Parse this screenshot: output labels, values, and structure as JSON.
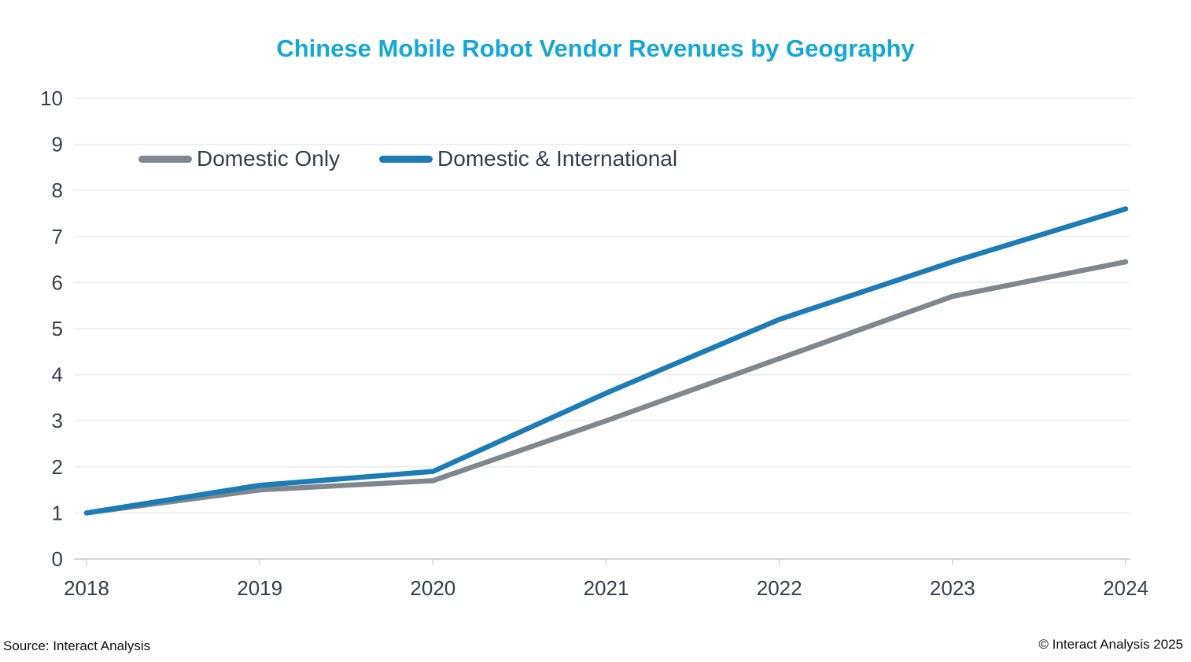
{
  "title": "Chinese Mobile Robot Vendor Revenues by Geography",
  "footer": {
    "source": "Source: Interact Analysis",
    "copyright": "© Interact Analysis 2025"
  },
  "colors": {
    "title": "#15a8d6",
    "gridline": "#ebebeb",
    "axis_line": "#d6d6d6",
    "tick_text": "#33404e",
    "legend_text": "#333f4d",
    "series_domestic_only": "#7f888e",
    "series_domestic_international": "#1d7cb5"
  },
  "chart_data": {
    "type": "line",
    "title": "Chinese Mobile Robot Vendor Revenues by Geography",
    "x": [
      "2018",
      "2019",
      "2020",
      "2021",
      "2022",
      "2023",
      "2024"
    ],
    "series": [
      {
        "name": "Domestic Only",
        "color": "#7f888e",
        "values": [
          1.0,
          1.5,
          1.7,
          3.0,
          4.35,
          5.7,
          6.45
        ]
      },
      {
        "name": "Domestic & International",
        "color": "#1d7cb5",
        "values": [
          1.0,
          1.6,
          1.9,
          3.6,
          5.2,
          6.45,
          7.6
        ]
      }
    ],
    "xlabel": "",
    "ylabel": "",
    "ylim": [
      0,
      10
    ],
    "yticks": [
      0,
      1,
      2,
      3,
      4,
      5,
      6,
      7,
      8,
      9,
      10
    ],
    "grid": true,
    "legend_position": "inside-top-left"
  }
}
